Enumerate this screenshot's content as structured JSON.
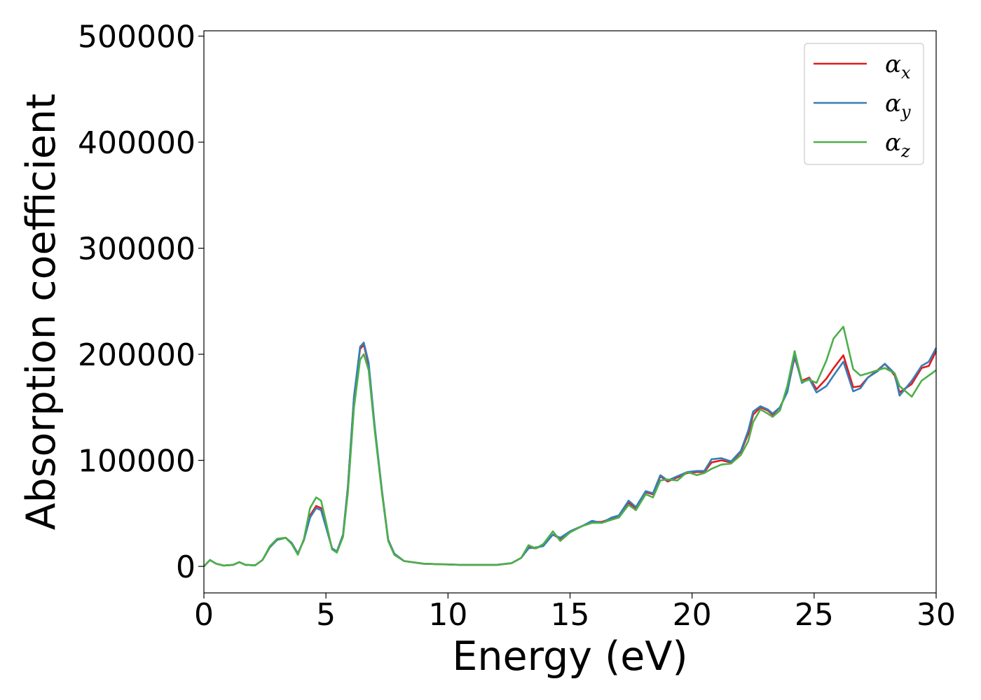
{
  "chart_data": {
    "type": "line",
    "title": "",
    "xlabel": "Energy (eV)",
    "ylabel": "Absorption coefficient",
    "xlim": [
      0,
      30
    ],
    "ylim": [
      -25000,
      505000
    ],
    "xticks": [
      0,
      5,
      10,
      15,
      20,
      25,
      30
    ],
    "xtick_labels": [
      "0",
      "5",
      "10",
      "15",
      "20",
      "25",
      "30"
    ],
    "yticks": [
      0,
      100000,
      200000,
      300000,
      400000,
      500000
    ],
    "ytick_labels": [
      "0",
      "100000",
      "200000",
      "300000",
      "400000",
      "500000"
    ],
    "grid": false,
    "legend_position": "top-right",
    "series": [
      {
        "name": "α_x",
        "legend_symbol": "α",
        "legend_sub": "x",
        "color": "#e41a1c",
        "points": [
          [
            0,
            0
          ],
          [
            0.25,
            6000
          ],
          [
            0.5,
            2500
          ],
          [
            0.8,
            800
          ],
          [
            1.2,
            1500
          ],
          [
            1.45,
            4000
          ],
          [
            1.7,
            1500
          ],
          [
            2.1,
            1000
          ],
          [
            2.4,
            6000
          ],
          [
            2.7,
            18000
          ],
          [
            3.0,
            25000
          ],
          [
            3.35,
            27000
          ],
          [
            3.6,
            22000
          ],
          [
            3.85,
            12000
          ],
          [
            4.1,
            25000
          ],
          [
            4.35,
            48000
          ],
          [
            4.6,
            57000
          ],
          [
            4.8,
            55000
          ],
          [
            5.0,
            38000
          ],
          [
            5.25,
            17000
          ],
          [
            5.45,
            14000
          ],
          [
            5.7,
            30000
          ],
          [
            5.9,
            75000
          ],
          [
            6.15,
            160000
          ],
          [
            6.4,
            205000
          ],
          [
            6.55,
            209000
          ],
          [
            6.75,
            190000
          ],
          [
            7.0,
            130000
          ],
          [
            7.3,
            70000
          ],
          [
            7.55,
            25000
          ],
          [
            7.8,
            12000
          ],
          [
            8.2,
            5000
          ],
          [
            9.0,
            2500
          ],
          [
            10.5,
            1500
          ],
          [
            12.0,
            1500
          ],
          [
            12.6,
            3000
          ],
          [
            13.0,
            8000
          ],
          [
            13.3,
            18000
          ],
          [
            13.6,
            17000
          ],
          [
            13.9,
            20000
          ],
          [
            14.3,
            30000
          ],
          [
            14.6,
            26000
          ],
          [
            15.0,
            33000
          ],
          [
            15.5,
            38000
          ],
          [
            15.9,
            42000
          ],
          [
            16.3,
            42000
          ],
          [
            16.7,
            45000
          ],
          [
            17.0,
            48000
          ],
          [
            17.4,
            60000
          ],
          [
            17.7,
            55000
          ],
          [
            18.1,
            70000
          ],
          [
            18.4,
            68000
          ],
          [
            18.7,
            85000
          ],
          [
            19.0,
            80000
          ],
          [
            19.4,
            84000
          ],
          [
            19.8,
            88000
          ],
          [
            20.2,
            89000
          ],
          [
            20.5,
            89000
          ],
          [
            20.8,
            98000
          ],
          [
            21.2,
            100000
          ],
          [
            21.6,
            98000
          ],
          [
            22.0,
            108000
          ],
          [
            22.3,
            125000
          ],
          [
            22.5,
            143000
          ],
          [
            22.8,
            150000
          ],
          [
            23.1,
            147000
          ],
          [
            23.3,
            143000
          ],
          [
            23.6,
            150000
          ],
          [
            23.9,
            165000
          ],
          [
            24.2,
            197000
          ],
          [
            24.5,
            175000
          ],
          [
            24.8,
            178000
          ],
          [
            25.1,
            167000
          ],
          [
            25.5,
            177000
          ],
          [
            25.8,
            187000
          ],
          [
            26.2,
            199000
          ],
          [
            26.6,
            169000
          ],
          [
            26.9,
            170000
          ],
          [
            27.2,
            178000
          ],
          [
            27.6,
            185000
          ],
          [
            27.9,
            191000
          ],
          [
            28.3,
            180000
          ],
          [
            28.5,
            164000
          ],
          [
            29.0,
            172000
          ],
          [
            29.4,
            187000
          ],
          [
            29.7,
            189000
          ],
          [
            30.0,
            203000
          ]
        ]
      },
      {
        "name": "α_y",
        "legend_symbol": "α",
        "legend_sub": "y",
        "color": "#377eb8",
        "points": [
          [
            0,
            0
          ],
          [
            0.25,
            6000
          ],
          [
            0.5,
            2500
          ],
          [
            0.8,
            800
          ],
          [
            1.2,
            1500
          ],
          [
            1.45,
            4000
          ],
          [
            1.7,
            1500
          ],
          [
            2.1,
            1000
          ],
          [
            2.4,
            6000
          ],
          [
            2.7,
            18000
          ],
          [
            3.0,
            25000
          ],
          [
            3.35,
            27000
          ],
          [
            3.6,
            22000
          ],
          [
            3.85,
            12000
          ],
          [
            4.1,
            25000
          ],
          [
            4.35,
            46000
          ],
          [
            4.6,
            55000
          ],
          [
            4.8,
            53000
          ],
          [
            5.0,
            37000
          ],
          [
            5.25,
            17000
          ],
          [
            5.45,
            14000
          ],
          [
            5.7,
            30000
          ],
          [
            5.9,
            75000
          ],
          [
            6.15,
            160000
          ],
          [
            6.4,
            207000
          ],
          [
            6.55,
            211000
          ],
          [
            6.75,
            192000
          ],
          [
            7.0,
            132000
          ],
          [
            7.3,
            70000
          ],
          [
            7.55,
            25000
          ],
          [
            7.8,
            12000
          ],
          [
            8.2,
            5000
          ],
          [
            9.0,
            2500
          ],
          [
            10.5,
            1500
          ],
          [
            12.0,
            1500
          ],
          [
            12.6,
            3000
          ],
          [
            13.0,
            8000
          ],
          [
            13.3,
            17000
          ],
          [
            13.6,
            18000
          ],
          [
            13.9,
            19000
          ],
          [
            14.3,
            30000
          ],
          [
            14.6,
            27000
          ],
          [
            15.0,
            33000
          ],
          [
            15.5,
            38000
          ],
          [
            15.9,
            43000
          ],
          [
            16.3,
            41000
          ],
          [
            16.7,
            46000
          ],
          [
            17.0,
            48000
          ],
          [
            17.4,
            62000
          ],
          [
            17.7,
            56000
          ],
          [
            18.1,
            71000
          ],
          [
            18.4,
            69000
          ],
          [
            18.7,
            86000
          ],
          [
            19.0,
            81000
          ],
          [
            19.4,
            85000
          ],
          [
            19.8,
            89000
          ],
          [
            20.2,
            90000
          ],
          [
            20.5,
            90000
          ],
          [
            20.8,
            101000
          ],
          [
            21.2,
            102000
          ],
          [
            21.6,
            99000
          ],
          [
            22.0,
            109000
          ],
          [
            22.3,
            128000
          ],
          [
            22.5,
            146000
          ],
          [
            22.8,
            151000
          ],
          [
            23.1,
            148000
          ],
          [
            23.3,
            144000
          ],
          [
            23.6,
            150000
          ],
          [
            23.9,
            164000
          ],
          [
            24.2,
            199000
          ],
          [
            24.5,
            173000
          ],
          [
            24.8,
            177000
          ],
          [
            25.1,
            164000
          ],
          [
            25.5,
            170000
          ],
          [
            25.8,
            180000
          ],
          [
            26.2,
            193000
          ],
          [
            26.6,
            165000
          ],
          [
            26.9,
            168000
          ],
          [
            27.2,
            178000
          ],
          [
            27.6,
            184000
          ],
          [
            27.9,
            191000
          ],
          [
            28.3,
            182000
          ],
          [
            28.5,
            161000
          ],
          [
            29.0,
            175000
          ],
          [
            29.4,
            189000
          ],
          [
            29.7,
            193000
          ],
          [
            30.0,
            206000
          ]
        ]
      },
      {
        "name": "α_z",
        "legend_symbol": "α",
        "legend_sub": "z",
        "color": "#4daf4a",
        "points": [
          [
            0,
            0
          ],
          [
            0.25,
            6000
          ],
          [
            0.5,
            2500
          ],
          [
            0.8,
            800
          ],
          [
            1.2,
            1500
          ],
          [
            1.45,
            4000
          ],
          [
            1.7,
            1500
          ],
          [
            2.1,
            1000
          ],
          [
            2.4,
            6000
          ],
          [
            2.7,
            19000
          ],
          [
            3.0,
            26000
          ],
          [
            3.35,
            27000
          ],
          [
            3.6,
            21000
          ],
          [
            3.85,
            11000
          ],
          [
            4.1,
            26000
          ],
          [
            4.35,
            55000
          ],
          [
            4.6,
            65000
          ],
          [
            4.8,
            62000
          ],
          [
            5.0,
            42000
          ],
          [
            5.25,
            16000
          ],
          [
            5.45,
            13000
          ],
          [
            5.7,
            28000
          ],
          [
            5.9,
            70000
          ],
          [
            6.15,
            150000
          ],
          [
            6.4,
            195000
          ],
          [
            6.55,
            200000
          ],
          [
            6.75,
            185000
          ],
          [
            7.0,
            128000
          ],
          [
            7.3,
            68000
          ],
          [
            7.55,
            24000
          ],
          [
            7.8,
            11000
          ],
          [
            8.2,
            5000
          ],
          [
            9.0,
            2500
          ],
          [
            10.5,
            1500
          ],
          [
            12.0,
            1500
          ],
          [
            12.6,
            3000
          ],
          [
            13.0,
            8000
          ],
          [
            13.3,
            20000
          ],
          [
            13.6,
            17000
          ],
          [
            13.9,
            21000
          ],
          [
            14.3,
            33000
          ],
          [
            14.6,
            24000
          ],
          [
            15.0,
            32000
          ],
          [
            15.5,
            38000
          ],
          [
            15.9,
            41000
          ],
          [
            16.3,
            41000
          ],
          [
            16.7,
            44000
          ],
          [
            17.0,
            46000
          ],
          [
            17.4,
            58000
          ],
          [
            17.7,
            53000
          ],
          [
            18.1,
            68000
          ],
          [
            18.4,
            65000
          ],
          [
            18.7,
            81000
          ],
          [
            19.0,
            82000
          ],
          [
            19.4,
            81000
          ],
          [
            19.8,
            89000
          ],
          [
            20.2,
            86000
          ],
          [
            20.5,
            88000
          ],
          [
            20.8,
            92000
          ],
          [
            21.2,
            96000
          ],
          [
            21.6,
            97000
          ],
          [
            22.0,
            105000
          ],
          [
            22.3,
            118000
          ],
          [
            22.5,
            136000
          ],
          [
            22.8,
            148000
          ],
          [
            23.1,
            144000
          ],
          [
            23.3,
            141000
          ],
          [
            23.6,
            147000
          ],
          [
            23.9,
            170000
          ],
          [
            24.2,
            203000
          ],
          [
            24.5,
            174000
          ],
          [
            24.8,
            176000
          ],
          [
            25.1,
            173000
          ],
          [
            25.5,
            194000
          ],
          [
            25.8,
            215000
          ],
          [
            26.2,
            226000
          ],
          [
            26.6,
            186000
          ],
          [
            26.9,
            180000
          ],
          [
            27.2,
            182000
          ],
          [
            27.6,
            185000
          ],
          [
            27.9,
            187000
          ],
          [
            28.3,
            182000
          ],
          [
            28.5,
            170000
          ],
          [
            29.0,
            160000
          ],
          [
            29.4,
            175000
          ],
          [
            29.7,
            180000
          ],
          [
            30.0,
            185000
          ]
        ]
      }
    ]
  }
}
